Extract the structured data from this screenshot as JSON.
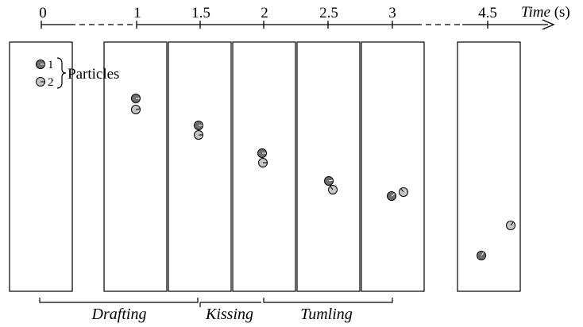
{
  "timeline": {
    "ticks": [
      "0",
      "1",
      "1.5",
      "2",
      "2.5",
      "3",
      "4.5"
    ],
    "axis_label_italic": "Time",
    "axis_unit": "(s)"
  },
  "legend": {
    "particle_1": "1",
    "particle_2": "2",
    "label": "Particles"
  },
  "phases": [
    "Drafting",
    "Kissing",
    "Tumling"
  ],
  "colors": {
    "particle_1": "#6e6e6e",
    "particle_2": "#c6c6c6",
    "stroke": "#000000"
  }
}
